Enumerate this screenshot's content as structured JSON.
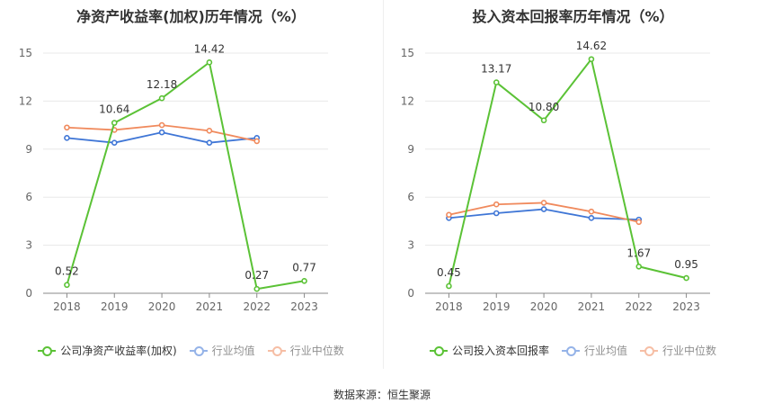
{
  "source_text": "数据来源：恒生聚源",
  "chart_data": [
    {
      "type": "line",
      "title": "净资产收益率(加权)历年情况（%）",
      "categories": [
        "2018",
        "2019",
        "2020",
        "2021",
        "2022",
        "2023"
      ],
      "ylim": [
        0,
        15
      ],
      "yticks": [
        "0",
        "3",
        "6",
        "9",
        "12",
        "15"
      ],
      "grid": true,
      "legend_position": "bottom",
      "series": [
        {
          "name": "公司净资产收益率(加权)",
          "color": "#5bc236",
          "values": [
            0.52,
            10.64,
            12.18,
            14.42,
            0.27,
            0.77
          ],
          "labels": [
            "0.52",
            "10.64",
            "12.18",
            "14.42",
            "0.27",
            "0.77"
          ]
        },
        {
          "name": "行业均值",
          "color": "#3f76d6",
          "values": [
            9.7,
            9.4,
            10.05,
            9.4,
            9.7,
            null
          ]
        },
        {
          "name": "行业中位数",
          "color": "#f08a5d",
          "values": [
            10.35,
            10.2,
            10.5,
            10.15,
            9.5,
            null
          ]
        }
      ]
    },
    {
      "type": "line",
      "title": "投入资本回报率历年情况（%）",
      "categories": [
        "2018",
        "2019",
        "2020",
        "2021",
        "2022",
        "2023"
      ],
      "ylim": [
        0,
        15
      ],
      "yticks": [
        "0",
        "3",
        "6",
        "9",
        "12",
        "15"
      ],
      "grid": true,
      "legend_position": "bottom",
      "series": [
        {
          "name": "公司投入资本回报率",
          "color": "#5bc236",
          "values": [
            0.45,
            13.17,
            10.8,
            14.62,
            1.67,
            0.95
          ],
          "labels": [
            "0.45",
            "13.17",
            "10.80",
            "14.62",
            "1.67",
            "0.95"
          ]
        },
        {
          "name": "行业均值",
          "color": "#3f76d6",
          "values": [
            4.7,
            5.0,
            5.25,
            4.7,
            4.6,
            null
          ]
        },
        {
          "name": "行业中位数",
          "color": "#f08a5d",
          "values": [
            4.9,
            5.55,
            5.65,
            5.1,
            4.45,
            null
          ]
        }
      ]
    }
  ]
}
